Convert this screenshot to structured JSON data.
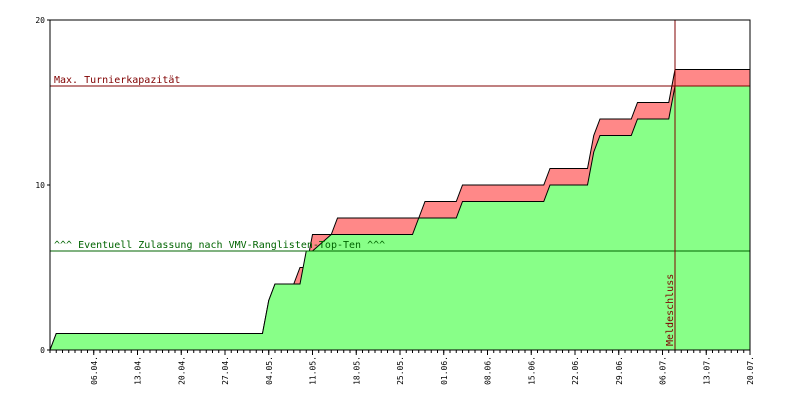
{
  "chart_data": {
    "type": "area",
    "title": "",
    "xlabel": "",
    "ylabel": "",
    "x_range": [
      "2024-03-30",
      "2024-07-20"
    ],
    "ylim": [
      0,
      20
    ],
    "y_ticks": [
      0,
      10,
      20
    ],
    "x_tick_labels": [
      "06.04.",
      "13.04.",
      "20.04.",
      "27.04.",
      "04.05.",
      "11.05.",
      "18.05.",
      "25.05.",
      "01.06.",
      "08.06.",
      "15.06.",
      "22.06.",
      "29.06.",
      "06.07.",
      "13.07.",
      "20.07."
    ],
    "x_tick_dates": [
      "2024-04-06",
      "2024-04-13",
      "2024-04-20",
      "2024-04-27",
      "2024-05-04",
      "2024-05-11",
      "2024-05-18",
      "2024-05-25",
      "2024-06-01",
      "2024-06-08",
      "2024-06-15",
      "2024-06-22",
      "2024-06-29",
      "2024-07-06",
      "2024-07-13",
      "2024-07-20"
    ],
    "grid": false,
    "series": [
      {
        "color": "#ff8888",
        "points": [
          [
            "2024-03-30",
            0
          ],
          [
            "2024-03-31",
            1
          ],
          [
            "2024-05-03",
            1
          ],
          [
            "2024-05-04",
            3
          ],
          [
            "2024-05-05",
            4
          ],
          [
            "2024-05-08",
            4
          ],
          [
            "2024-05-09",
            5
          ],
          [
            "2024-05-10",
            5
          ],
          [
            "2024-05-11",
            7
          ],
          [
            "2024-05-14",
            7
          ],
          [
            "2024-05-15",
            8
          ],
          [
            "2024-05-28",
            8
          ],
          [
            "2024-05-29",
            9
          ],
          [
            "2024-06-03",
            9
          ],
          [
            "2024-06-04",
            10
          ],
          [
            "2024-06-17",
            10
          ],
          [
            "2024-06-18",
            11
          ],
          [
            "2024-06-24",
            11
          ],
          [
            "2024-06-25",
            13
          ],
          [
            "2024-06-26",
            14
          ],
          [
            "2024-07-01",
            14
          ],
          [
            "2024-07-02",
            15
          ],
          [
            "2024-07-07",
            15
          ],
          [
            "2024-07-08",
            17
          ],
          [
            "2024-07-20",
            17
          ]
        ]
      },
      {
        "color": "#88ff88",
        "points": [
          [
            "2024-03-30",
            0
          ],
          [
            "2024-03-31",
            1
          ],
          [
            "2024-05-03",
            1
          ],
          [
            "2024-05-04",
            3
          ],
          [
            "2024-05-05",
            4
          ],
          [
            "2024-05-09",
            4
          ],
          [
            "2024-05-10",
            6
          ],
          [
            "2024-05-11",
            6
          ],
          [
            "2024-05-14",
            7
          ],
          [
            "2024-05-27",
            7
          ],
          [
            "2024-05-28",
            8
          ],
          [
            "2024-06-03",
            8
          ],
          [
            "2024-06-04",
            9
          ],
          [
            "2024-06-17",
            9
          ],
          [
            "2024-06-18",
            10
          ],
          [
            "2024-06-24",
            10
          ],
          [
            "2024-06-25",
            12
          ],
          [
            "2024-06-26",
            13
          ],
          [
            "2024-07-01",
            13
          ],
          [
            "2024-07-02",
            14
          ],
          [
            "2024-07-07",
            14
          ],
          [
            "2024-07-08",
            16
          ],
          [
            "2024-07-20",
            16
          ]
        ]
      }
    ],
    "reference_lines": [
      {
        "axis": "y",
        "value": 16,
        "label": "Max. Turnierkapazität",
        "color": "#800000"
      },
      {
        "axis": "y",
        "value": 6,
        "label": "^^^ Eventuell Zulassung nach VMV-Ranglisten-Top-Ten ^^^",
        "color": "#006400"
      },
      {
        "axis": "x",
        "value": "2024-07-08",
        "label": "Meldeschluss",
        "color": "#800000"
      }
    ]
  }
}
